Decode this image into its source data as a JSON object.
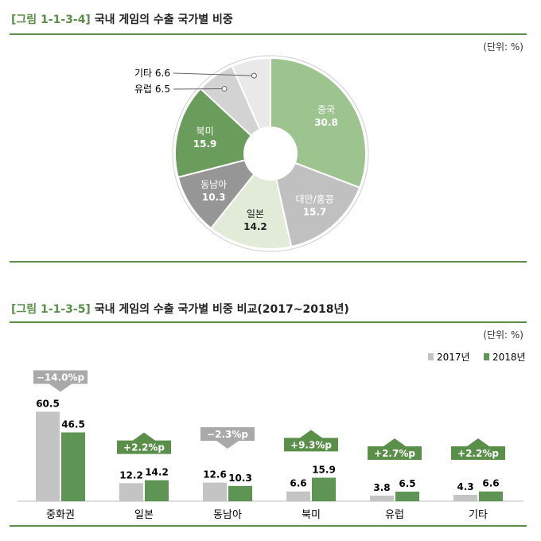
{
  "figure1": {
    "number": "[그림 1-1-3-4]",
    "title": "국내 게임의 수출 국가별 비중",
    "unit": "(단위: %)",
    "chart_data": {
      "type": "pie",
      "slices": [
        {
          "label": "중국",
          "value": 30.8,
          "color": "#9dc38f"
        },
        {
          "label": "대만/홍콩",
          "value": 15.7,
          "color": "#c0c0c0"
        },
        {
          "label": "일본",
          "value": 14.2,
          "color": "#e1ebd8"
        },
        {
          "label": "동남아",
          "value": 10.3,
          "color": "#969696"
        },
        {
          "label": "북미",
          "value": 15.9,
          "color": "#6a9d5c"
        },
        {
          "label": "유럽",
          "value": 6.5,
          "color": "#d3d3d3"
        },
        {
          "label": "기타",
          "value": 6.6,
          "color": "#e9e9e9"
        }
      ]
    }
  },
  "figure2": {
    "number": "[그림 1-1-3-5]",
    "title": "국내 게임의 수출 국가별 비중 비교(2017~2018년)",
    "unit": "(단위: %)",
    "chart_data": {
      "type": "bar",
      "categories": [
        "중화권",
        "일본",
        "동남아",
        "북미",
        "유럽",
        "기타"
      ],
      "series": [
        {
          "name": "2017년",
          "values": [
            60.5,
            12.2,
            12.6,
            6.6,
            3.8,
            4.3
          ],
          "color": "#c4c4c4"
        },
        {
          "name": "2018년",
          "values": [
            46.5,
            14.2,
            10.3,
            15.9,
            6.5,
            6.6
          ],
          "color": "#5e9555"
        }
      ],
      "changes": [
        {
          "label": "−14.0%p",
          "direction": "down"
        },
        {
          "label": "+2.2%p",
          "direction": "up"
        },
        {
          "label": "−2.3%p",
          "direction": "down"
        },
        {
          "label": "+9.3%p",
          "direction": "up"
        },
        {
          "label": "+2.7%p",
          "direction": "up"
        },
        {
          "label": "+2.2%p",
          "direction": "up"
        }
      ],
      "colors": {
        "up": "#5a8f4a",
        "down": "#a9a9a9"
      }
    }
  }
}
